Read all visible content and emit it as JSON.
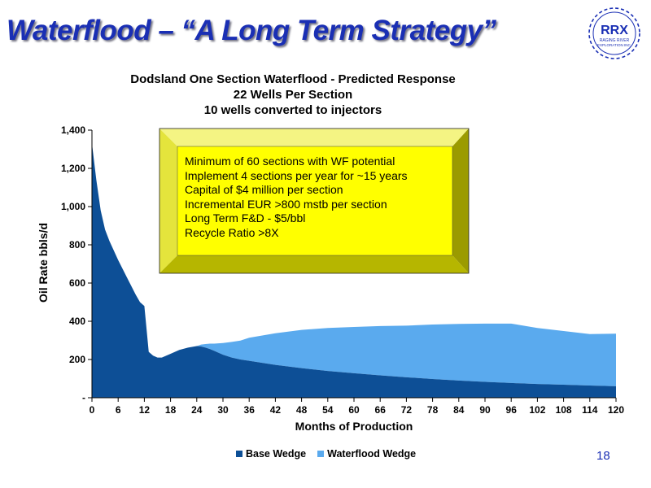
{
  "slide": {
    "title": "Waterflood – “A Long Term Strategy”",
    "page_number": "18"
  },
  "logo": {
    "name": "RRX",
    "tagline_1": "RAGING RIVER",
    "tagline_2": "EXPLORATION INC."
  },
  "callout": {
    "lines": [
      "Minimum of 60 sections with WF potential",
      "Implement 4 sections per year for ~15 years",
      "Capital of $4 million per section",
      "Incremental EUR >800 mstb per section",
      "Long Term F&D - $5/bbl",
      "Recycle Ratio >8X"
    ]
  },
  "chart_data": {
    "type": "area",
    "stacked": true,
    "title": [
      "Dodsland One Section Waterflood -  Predicted Response",
      "22 Wells Per Section",
      "10 wells converted to injectors"
    ],
    "xlabel": "Months of Production",
    "ylabel": "Oil Rate bbls/d",
    "xlim": [
      0,
      120
    ],
    "ylim": [
      0,
      1400
    ],
    "x_ticks": [
      0,
      6,
      12,
      18,
      24,
      30,
      36,
      42,
      48,
      54,
      60,
      66,
      72,
      78,
      84,
      90,
      96,
      102,
      108,
      114,
      120
    ],
    "y_ticks": [
      0,
      200,
      400,
      600,
      800,
      1000,
      1200,
      1400
    ],
    "y_tick_labels": [
      "-",
      "200",
      "400",
      "600",
      "800",
      "1,000",
      "1,200",
      "1,400"
    ],
    "grid": false,
    "legend_position": "bottom",
    "x": [
      0,
      1,
      2,
      3,
      4,
      6,
      8,
      10,
      11,
      12,
      13,
      14,
      15,
      16,
      18,
      20,
      22,
      24,
      25,
      26,
      27,
      28,
      30,
      32,
      34,
      36,
      42,
      48,
      54,
      60,
      66,
      72,
      78,
      84,
      90,
      96,
      102,
      108,
      114,
      120
    ],
    "series": [
      {
        "name": "Base Wedge",
        "color": "#0d4f96",
        "values": [
          1330,
          1140,
          980,
          880,
          820,
          720,
          630,
          540,
          500,
          480,
          240,
          220,
          210,
          210,
          230,
          250,
          262,
          270,
          268,
          262,
          255,
          245,
          225,
          210,
          200,
          193,
          172,
          155,
          140,
          128,
          117,
          107,
          98,
          90,
          83,
          77,
          72,
          68,
          64,
          60
        ]
      },
      {
        "name": "Waterflood Wedge",
        "color": "#5aaaee",
        "values": [
          0,
          0,
          0,
          0,
          0,
          0,
          0,
          0,
          0,
          0,
          0,
          0,
          0,
          0,
          0,
          0,
          0,
          0,
          10,
          19,
          28,
          38,
          61,
          82,
          99,
          121,
          165,
          200,
          225,
          242,
          258,
          270,
          285,
          296,
          305,
          311,
          293,
          281,
          269,
          275
        ]
      }
    ]
  }
}
